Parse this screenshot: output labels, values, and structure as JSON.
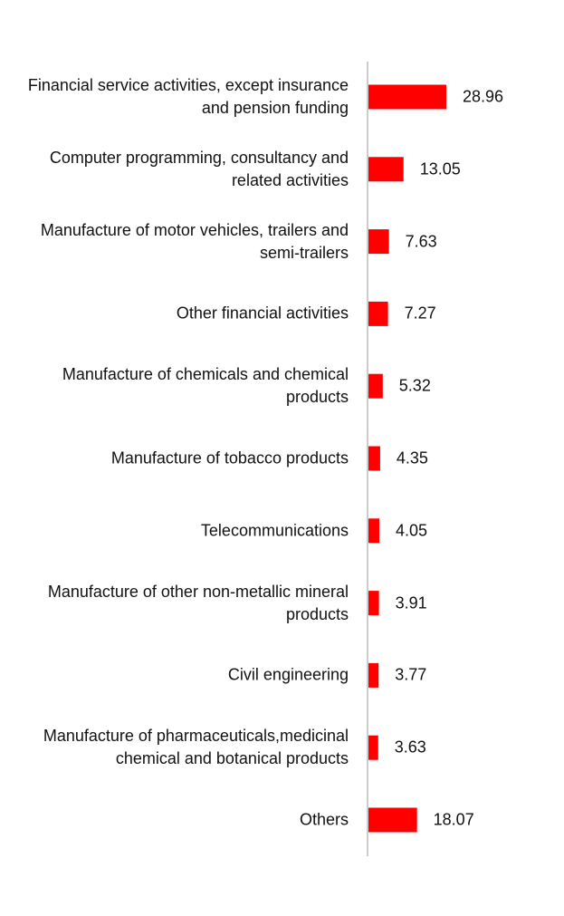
{
  "chart_data": {
    "type": "bar",
    "orientation": "horizontal",
    "color": "#ff0000",
    "categories": [
      "Financial service activities, except insurance and pension funding",
      "Computer programming, consultancy and related activities",
      "Manufacture of motor vehicles, trailers and semi-trailers",
      "Other financial activities",
      "Manufacture of chemicals and chemical products",
      "Manufacture of tobacco products",
      "Telecommunications",
      "Manufacture of other non-metallic mineral products",
      "Civil engineering",
      "Manufacture of pharmaceuticals,medicinal chemical and botanical products",
      "Others"
    ],
    "values": [
      28.96,
      13.05,
      7.63,
      7.27,
      5.32,
      4.35,
      4.05,
      3.91,
      3.77,
      3.63,
      18.07
    ]
  }
}
